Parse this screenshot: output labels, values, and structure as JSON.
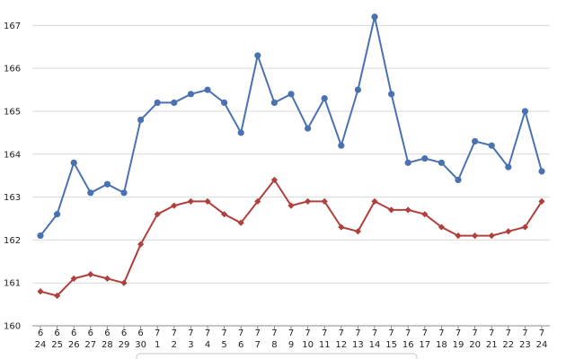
{
  "chart_data": {
    "type": "line",
    "categories": [
      [
        "6",
        "24"
      ],
      [
        "6",
        "25"
      ],
      [
        "6",
        "26"
      ],
      [
        "6",
        "27"
      ],
      [
        "6",
        "28"
      ],
      [
        "6",
        "29"
      ],
      [
        "6",
        "30"
      ],
      [
        "7",
        "1"
      ],
      [
        "7",
        "2"
      ],
      [
        "7",
        "3"
      ],
      [
        "7",
        "4"
      ],
      [
        "7",
        "5"
      ],
      [
        "7",
        "6"
      ],
      [
        "7",
        "7"
      ],
      [
        "7",
        "8"
      ],
      [
        "7",
        "9"
      ],
      [
        "7",
        "10"
      ],
      [
        "7",
        "11"
      ],
      [
        "7",
        "12"
      ],
      [
        "7",
        "13"
      ],
      [
        "7",
        "14"
      ],
      [
        "7",
        "15"
      ],
      [
        "7",
        "16"
      ],
      [
        "7",
        "17"
      ],
      [
        "7",
        "18"
      ],
      [
        "7",
        "19"
      ],
      [
        "7",
        "20"
      ],
      [
        "7",
        "21"
      ],
      [
        "7",
        "22"
      ],
      [
        "7",
        "23"
      ],
      [
        "7",
        "24"
      ]
    ],
    "y_ticks": [
      160,
      161,
      162,
      163,
      164,
      165,
      166,
      167
    ],
    "ylim": [
      160,
      167.3
    ],
    "grid": "horizontal",
    "series": [
      {
        "color": "#4a72b0",
        "marker": "circle",
        "values": [
          162.1,
          162.6,
          163.8,
          163.1,
          163.3,
          163.1,
          164.8,
          165.2,
          165.2,
          165.4,
          165.5,
          165.2,
          164.5,
          166.3,
          165.2,
          165.4,
          164.6,
          165.3,
          164.2,
          165.5,
          167.2,
          165.4,
          163.8,
          163.9,
          163.8,
          163.4,
          164.3,
          164.2,
          163.7,
          165.0,
          163.6
        ]
      },
      {
        "color": "#b0403e",
        "marker": "diamond",
        "values": [
          160.8,
          160.7,
          161.1,
          161.2,
          161.1,
          161.0,
          161.9,
          162.6,
          162.8,
          162.9,
          162.9,
          162.6,
          162.4,
          162.9,
          163.4,
          162.8,
          162.9,
          162.9,
          162.3,
          162.2,
          162.9,
          162.7,
          162.7,
          162.6,
          162.3,
          162.1,
          162.1,
          162.1,
          162.2,
          162.3,
          162.9
        ]
      }
    ]
  }
}
